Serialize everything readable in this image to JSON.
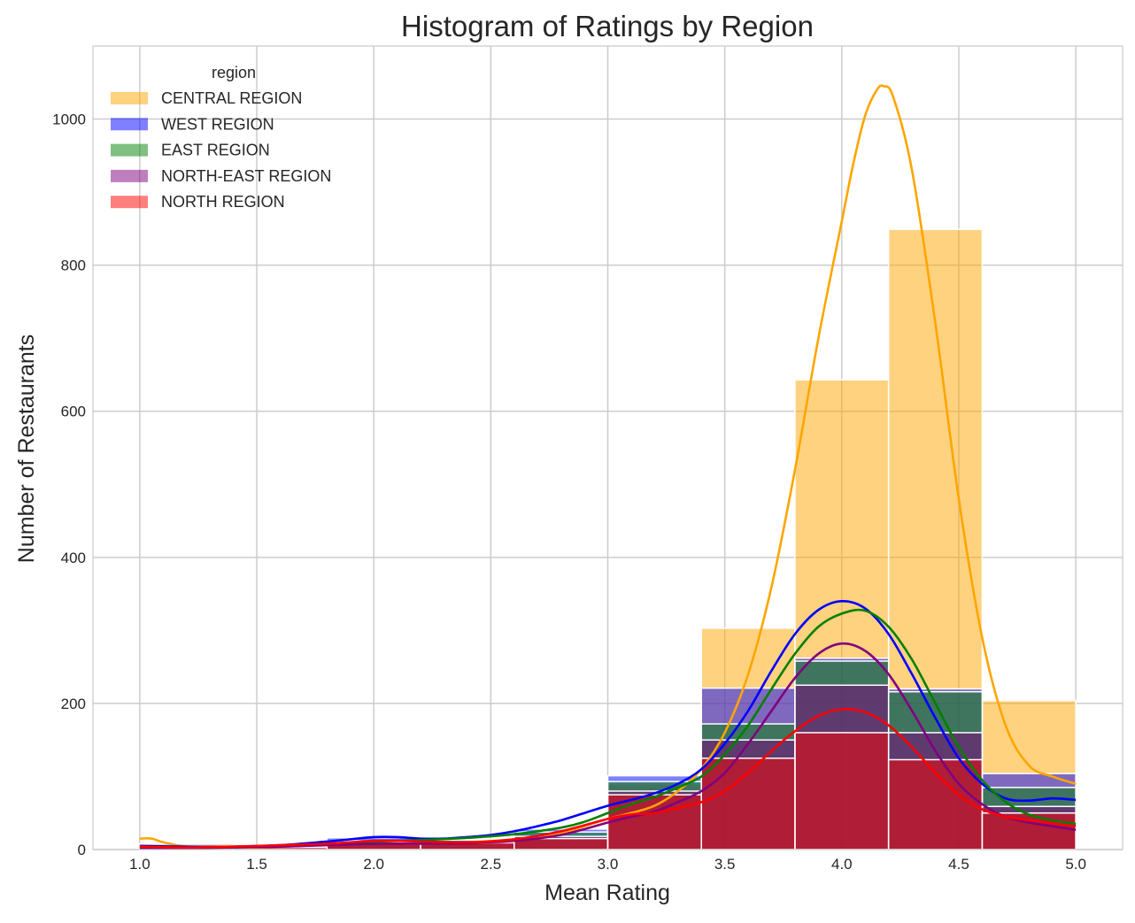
{
  "chart_data": {
    "type": "histogram",
    "title": "Histogram of Ratings by Region",
    "xlabel": "Mean Rating",
    "ylabel": "Number of Restaurants",
    "xlim": [
      0.8,
      5.2
    ],
    "ylim": [
      0,
      1100
    ],
    "x_ticks": [
      "1.0",
      "1.5",
      "2.0",
      "2.5",
      "3.0",
      "3.5",
      "4.0",
      "4.5",
      "5.0"
    ],
    "x_tick_values": [
      1.0,
      1.5,
      2.0,
      2.5,
      3.0,
      3.5,
      4.0,
      4.5,
      5.0
    ],
    "y_ticks": [
      "0",
      "200",
      "400",
      "600",
      "800",
      "1000"
    ],
    "y_tick_values": [
      0,
      200,
      400,
      600,
      800,
      1000
    ],
    "grid": true,
    "legend": {
      "title": "region",
      "placement": "top-left"
    },
    "bin_edges": [
      1.0,
      1.4,
      1.8,
      2.2,
      2.6,
      3.0,
      3.4,
      3.8,
      4.2,
      4.6,
      5.0
    ],
    "series": [
      {
        "name": "CENTRAL REGION",
        "color": "#FFA500",
        "counts": [
          8,
          3,
          12,
          9,
          20,
          90,
          303,
          643,
          849,
          204
        ],
        "kde": [
          [
            1.0,
            15
          ],
          [
            1.05,
            15
          ],
          [
            1.1,
            10
          ],
          [
            1.2,
            4
          ],
          [
            1.3,
            3
          ],
          [
            1.5,
            3
          ],
          [
            1.7,
            5
          ],
          [
            1.9,
            8
          ],
          [
            2.0,
            9
          ],
          [
            2.2,
            8
          ],
          [
            2.4,
            10
          ],
          [
            2.6,
            14
          ],
          [
            2.8,
            22
          ],
          [
            2.9,
            32
          ],
          [
            3.0,
            42
          ],
          [
            3.1,
            50
          ],
          [
            3.2,
            60
          ],
          [
            3.3,
            80
          ],
          [
            3.4,
            110
          ],
          [
            3.5,
            160
          ],
          [
            3.6,
            240
          ],
          [
            3.7,
            360
          ],
          [
            3.8,
            520
          ],
          [
            3.9,
            700
          ],
          [
            4.0,
            860
          ],
          [
            4.05,
            940
          ],
          [
            4.1,
            1005
          ],
          [
            4.15,
            1040
          ],
          [
            4.18,
            1045
          ],
          [
            4.22,
            1030
          ],
          [
            4.3,
            930
          ],
          [
            4.4,
            720
          ],
          [
            4.5,
            480
          ],
          [
            4.6,
            290
          ],
          [
            4.7,
            170
          ],
          [
            4.8,
            115
          ],
          [
            4.9,
            100
          ],
          [
            5.0,
            90
          ]
        ]
      },
      {
        "name": "WEST REGION",
        "color": "#0000FF",
        "counts": [
          5,
          4,
          16,
          14,
          28,
          101,
          221,
          262,
          220,
          104
        ],
        "kde": [
          [
            1.0,
            5
          ],
          [
            1.2,
            4
          ],
          [
            1.4,
            4
          ],
          [
            1.6,
            6
          ],
          [
            1.8,
            11
          ],
          [
            1.9,
            14
          ],
          [
            2.0,
            17
          ],
          [
            2.1,
            17
          ],
          [
            2.2,
            15
          ],
          [
            2.3,
            15
          ],
          [
            2.4,
            17
          ],
          [
            2.5,
            20
          ],
          [
            2.6,
            25
          ],
          [
            2.7,
            32
          ],
          [
            2.8,
            40
          ],
          [
            2.9,
            50
          ],
          [
            3.0,
            60
          ],
          [
            3.1,
            68
          ],
          [
            3.2,
            77
          ],
          [
            3.3,
            90
          ],
          [
            3.4,
            110
          ],
          [
            3.5,
            145
          ],
          [
            3.6,
            190
          ],
          [
            3.7,
            245
          ],
          [
            3.8,
            295
          ],
          [
            3.9,
            328
          ],
          [
            4.0,
            340
          ],
          [
            4.1,
            330
          ],
          [
            4.2,
            295
          ],
          [
            4.3,
            240
          ],
          [
            4.4,
            180
          ],
          [
            4.5,
            125
          ],
          [
            4.6,
            90
          ],
          [
            4.7,
            70
          ],
          [
            4.8,
            67
          ],
          [
            4.9,
            70
          ],
          [
            5.0,
            68
          ]
        ]
      },
      {
        "name": "EAST REGION",
        "color": "#008000",
        "counts": [
          4,
          4,
          12,
          13,
          24,
          93,
          172,
          258,
          216,
          85
        ],
        "kde": [
          [
            1.0,
            3
          ],
          [
            1.2,
            2
          ],
          [
            1.4,
            3
          ],
          [
            1.6,
            5
          ],
          [
            1.8,
            8
          ],
          [
            2.0,
            11
          ],
          [
            2.2,
            13
          ],
          [
            2.4,
            16
          ],
          [
            2.6,
            21
          ],
          [
            2.8,
            30
          ],
          [
            2.9,
            38
          ],
          [
            3.0,
            50
          ],
          [
            3.1,
            62
          ],
          [
            3.2,
            72
          ],
          [
            3.3,
            85
          ],
          [
            3.4,
            100
          ],
          [
            3.5,
            130
          ],
          [
            3.6,
            170
          ],
          [
            3.7,
            220
          ],
          [
            3.8,
            268
          ],
          [
            3.9,
            305
          ],
          [
            4.0,
            323
          ],
          [
            4.1,
            327
          ],
          [
            4.2,
            305
          ],
          [
            4.3,
            260
          ],
          [
            4.4,
            200
          ],
          [
            4.5,
            140
          ],
          [
            4.6,
            95
          ],
          [
            4.7,
            65
          ],
          [
            4.8,
            48
          ],
          [
            4.9,
            40
          ],
          [
            5.0,
            35
          ]
        ]
      },
      {
        "name": "NORTH-EAST REGION",
        "color": "#800080",
        "counts": [
          3,
          3,
          10,
          9,
          18,
          80,
          150,
          225,
          160,
          59
        ],
        "kde": [
          [
            1.0,
            2
          ],
          [
            1.2,
            2
          ],
          [
            1.4,
            3
          ],
          [
            1.6,
            4
          ],
          [
            1.8,
            6
          ],
          [
            2.0,
            8
          ],
          [
            2.2,
            8
          ],
          [
            2.4,
            9
          ],
          [
            2.6,
            12
          ],
          [
            2.8,
            20
          ],
          [
            3.0,
            37
          ],
          [
            3.1,
            45
          ],
          [
            3.2,
            52
          ],
          [
            3.3,
            65
          ],
          [
            3.4,
            80
          ],
          [
            3.5,
            105
          ],
          [
            3.6,
            145
          ],
          [
            3.7,
            190
          ],
          [
            3.8,
            235
          ],
          [
            3.9,
            268
          ],
          [
            4.0,
            282
          ],
          [
            4.1,
            272
          ],
          [
            4.2,
            240
          ],
          [
            4.3,
            190
          ],
          [
            4.4,
            135
          ],
          [
            4.5,
            90
          ],
          [
            4.6,
            62
          ],
          [
            4.7,
            45
          ],
          [
            4.8,
            37
          ],
          [
            4.9,
            32
          ],
          [
            5.0,
            27
          ]
        ]
      },
      {
        "name": "NORTH REGION",
        "color": "#FF0000",
        "counts": [
          3,
          3,
          10,
          10,
          15,
          75,
          125,
          160,
          123,
          50
        ],
        "kde": [
          [
            1.0,
            4
          ],
          [
            1.2,
            3
          ],
          [
            1.4,
            4
          ],
          [
            1.6,
            6
          ],
          [
            1.8,
            8
          ],
          [
            1.9,
            10
          ],
          [
            2.0,
            12
          ],
          [
            2.1,
            12
          ],
          [
            2.2,
            11
          ],
          [
            2.4,
            10
          ],
          [
            2.6,
            14
          ],
          [
            2.8,
            25
          ],
          [
            3.0,
            42
          ],
          [
            3.1,
            48
          ],
          [
            3.2,
            50
          ],
          [
            3.3,
            57
          ],
          [
            3.4,
            65
          ],
          [
            3.5,
            80
          ],
          [
            3.6,
            105
          ],
          [
            3.7,
            135
          ],
          [
            3.8,
            162
          ],
          [
            3.9,
            183
          ],
          [
            4.0,
            192
          ],
          [
            4.1,
            188
          ],
          [
            4.2,
            170
          ],
          [
            4.3,
            140
          ],
          [
            4.4,
            105
          ],
          [
            4.5,
            75
          ],
          [
            4.6,
            55
          ],
          [
            4.7,
            45
          ],
          [
            4.8,
            40
          ],
          [
            4.9,
            36
          ],
          [
            5.0,
            32
          ]
        ]
      }
    ]
  }
}
